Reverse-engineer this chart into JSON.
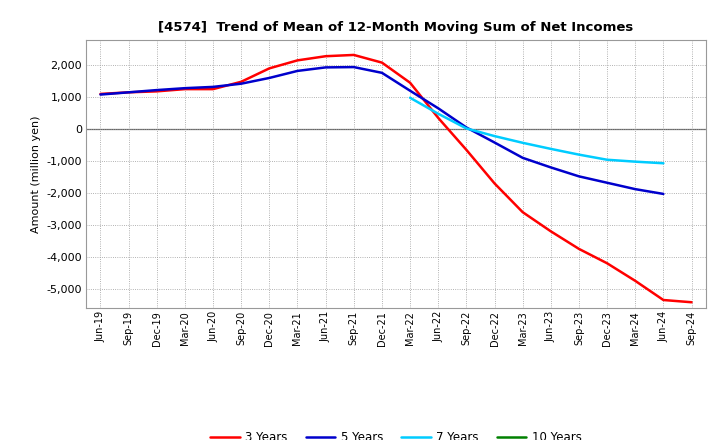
{
  "title": "[4574]  Trend of Mean of 12-Month Moving Sum of Net Incomes",
  "ylabel": "Amount (million yen)",
  "background_color": "#ffffff",
  "plot_background": "#ffffff",
  "grid_color": "#aaaaaa",
  "ylim": [
    -5600,
    2800
  ],
  "yticks": [
    -5000,
    -4000,
    -3000,
    -2000,
    -1000,
    0,
    1000,
    2000
  ],
  "x_labels": [
    "Jun-19",
    "Sep-19",
    "Dec-19",
    "Mar-20",
    "Jun-20",
    "Sep-20",
    "Dec-20",
    "Mar-21",
    "Jun-21",
    "Sep-21",
    "Dec-21",
    "Mar-22",
    "Jun-22",
    "Sep-22",
    "Dec-22",
    "Mar-23",
    "Jun-23",
    "Sep-23",
    "Dec-23",
    "Mar-24",
    "Jun-24",
    "Sep-24"
  ],
  "series": {
    "3 Years": {
      "color": "#ff0000",
      "values": [
        1100,
        1150,
        1180,
        1250,
        1250,
        1480,
        1900,
        2150,
        2280,
        2320,
        2080,
        1450,
        350,
        -650,
        -1700,
        -2600,
        -3200,
        -3750,
        -4200,
        -4750,
        -5350,
        -5420
      ]
    },
    "5 Years": {
      "color": "#0000cc",
      "values": [
        1080,
        1150,
        1220,
        1280,
        1320,
        1420,
        1600,
        1820,
        1930,
        1940,
        1760,
        1200,
        650,
        50,
        -420,
        -900,
        -1200,
        -1480,
        -1680,
        -1880,
        -2030,
        null
      ]
    },
    "7 Years": {
      "color": "#00ccff",
      "values": [
        null,
        null,
        null,
        null,
        null,
        null,
        null,
        null,
        null,
        null,
        null,
        980,
        480,
        20,
        -220,
        -430,
        -620,
        -800,
        -960,
        -1020,
        -1070,
        null
      ]
    },
    "10 Years": {
      "color": "#008000",
      "values": [
        null,
        null,
        null,
        null,
        null,
        null,
        null,
        null,
        null,
        null,
        null,
        null,
        null,
        null,
        null,
        null,
        null,
        null,
        null,
        null,
        null,
        null
      ]
    }
  },
  "legend_labels": [
    "3 Years",
    "5 Years",
    "7 Years",
    "10 Years"
  ],
  "legend_colors": [
    "#ff0000",
    "#0000cc",
    "#00ccff",
    "#008000"
  ]
}
